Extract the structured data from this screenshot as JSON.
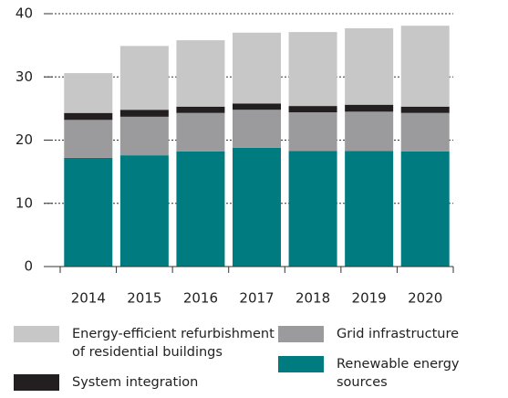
{
  "chart_data": {
    "type": "stacked_bar",
    "categories": [
      "2014",
      "2015",
      "2016",
      "2017",
      "2018",
      "2019",
      "2020"
    ],
    "series": [
      {
        "name": "Renewable energy sources",
        "color": "#007b80",
        "values": [
          17.2,
          17.6,
          18.2,
          18.8,
          18.3,
          18.3,
          18.2
        ]
      },
      {
        "name": "Grid infrastructure",
        "color": "#9b9b9d",
        "values": [
          6.0,
          6.1,
          6.1,
          6.0,
          6.1,
          6.2,
          6.1
        ]
      },
      {
        "name": "System integration",
        "color": "#231f20",
        "values": [
          1.1,
          1.1,
          1.0,
          1.0,
          1.0,
          1.1,
          1.0
        ]
      },
      {
        "name": "Energy-efficient refurbishment of residential buildings",
        "color": "#c7c7c7",
        "values": [
          6.3,
          10.1,
          10.5,
          11.2,
          11.7,
          12.1,
          12.8
        ]
      }
    ],
    "ylim": [
      0,
      40
    ],
    "yticks": [
      0,
      10,
      20,
      30,
      40
    ],
    "grid": true
  }
}
